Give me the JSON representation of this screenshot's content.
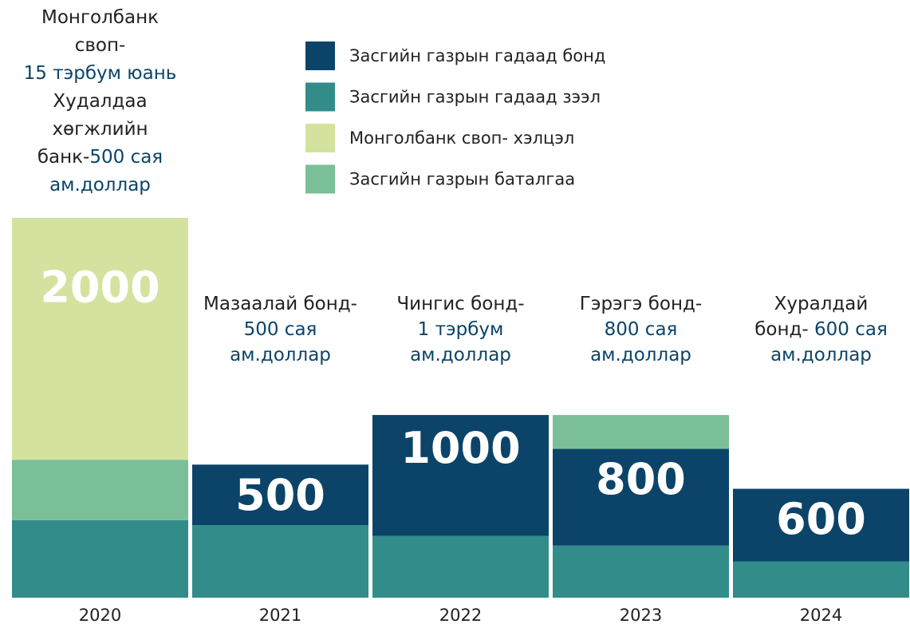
{
  "chart_data": {
    "type": "stacked_bar",
    "categories": [
      "2020",
      "2021",
      "2022",
      "2023",
      "2024"
    ],
    "series": [
      {
        "name": "Засгийн газрын гадаад бонд",
        "color": "#0b4468",
        "values": [
          null,
          500,
          1000,
          800,
          600
        ],
        "show_labels": true
      },
      {
        "name": "Засгийн газрын гадаад зээл",
        "color": "#328d8a",
        "values": [
          640,
          600,
          510,
          430,
          300
        ],
        "show_labels": false
      },
      {
        "name": "Монголбанк своп- хэлцэл",
        "color": "#d3e39f",
        "values": [
          2000,
          null,
          null,
          null,
          null
        ],
        "show_labels": true
      },
      {
        "name": "Засгийн газрын баталгаа",
        "color": "#7bbf98",
        "values": [
          500,
          null,
          null,
          280,
          null
        ],
        "show_labels": false
      }
    ],
    "highlight_color": "#0b4468",
    "annotations": [
      [
        [
          {
            "text": "Монголбанк"
          }
        ],
        [
          {
            "text": "своп-"
          }
        ],
        [
          {
            "text": "15 тэрбум юань",
            "highlight": true
          }
        ],
        [
          {
            "text": "Худалдаа"
          }
        ],
        [
          {
            "text": "хөгжлийн"
          }
        ],
        [
          {
            "text": "банк-"
          },
          {
            "text": "500 сая",
            "highlight": true
          }
        ],
        [
          {
            "text": "ам.доллар",
            "highlight": true
          }
        ]
      ],
      [
        [
          {
            "text": "Мазаалай бонд-"
          }
        ],
        [
          {
            "text": "500 сая",
            "highlight": true
          }
        ],
        [
          {
            "text": "ам.доллар",
            "highlight": true
          }
        ]
      ],
      [
        [
          {
            "text": "Чингис бонд-"
          }
        ],
        [
          {
            "text": "1 тэрбум",
            "highlight": true
          }
        ],
        [
          {
            "text": "ам.доллар",
            "highlight": true
          }
        ]
      ],
      [
        [
          {
            "text": "Гэрэгэ бонд-"
          }
        ],
        [
          {
            "text": "800 сая",
            "highlight": true
          }
        ],
        [
          {
            "text": "ам.доллар",
            "highlight": true
          }
        ]
      ],
      [
        [
          {
            "text": "Хуралдай"
          }
        ],
        [
          {
            "text": "бонд- "
          },
          {
            "text": "600 сая",
            "highlight": true
          }
        ],
        [
          {
            "text": "ам.доллар",
            "highlight": true
          }
        ]
      ]
    ]
  }
}
